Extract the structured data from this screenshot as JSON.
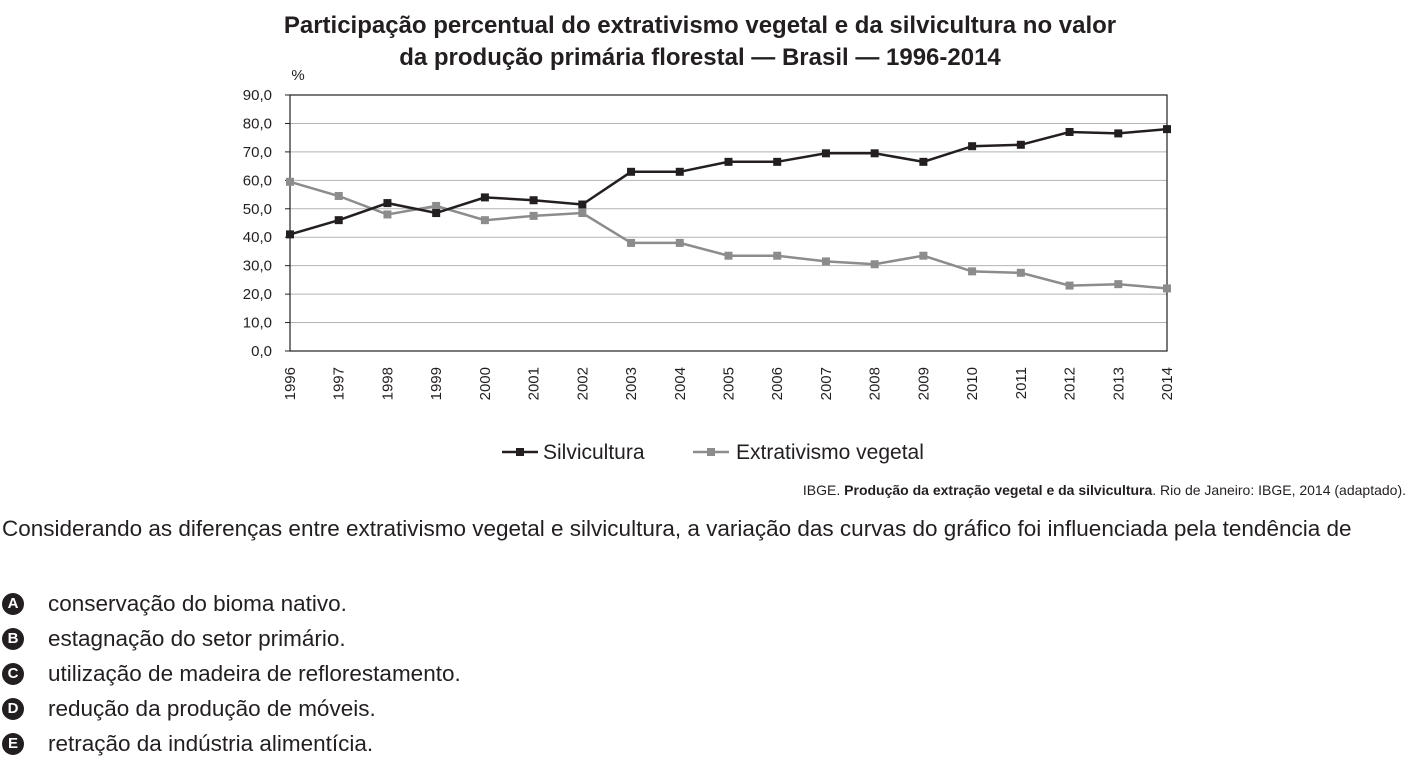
{
  "chart_data": {
    "type": "line",
    "title_line1": "Participação percentual do extrativismo vegetal e da silvicultura no valor",
    "title_line2": "da produção primária florestal — Brasil — 1996-2014",
    "ylabel": "%",
    "ylim": [
      0,
      90
    ],
    "yticks": [
      "0,0",
      "10,0",
      "20,0",
      "30,0",
      "40,0",
      "50,0",
      "60,0",
      "70,0",
      "80,0",
      "90,0"
    ],
    "x": [
      "1996",
      "1997",
      "1998",
      "1999",
      "2000",
      "2001",
      "2002",
      "2003",
      "2004",
      "2005",
      "2006",
      "2007",
      "2008",
      "2009",
      "2010",
      "2011",
      "2012",
      "2013",
      "2014"
    ],
    "grid": true,
    "legend_position": "bottom",
    "series": [
      {
        "name": "Silvicultura",
        "color": "#231f20",
        "values": [
          41.0,
          46.0,
          52.0,
          48.5,
          54.0,
          53.0,
          51.5,
          63.0,
          63.0,
          66.5,
          66.5,
          69.5,
          69.5,
          66.5,
          72.0,
          72.5,
          77.0,
          76.5,
          78.0
        ]
      },
      {
        "name": "Extrativismo vegetal",
        "color": "#8c8c8c",
        "values": [
          59.5,
          54.5,
          48.0,
          51.0,
          46.0,
          47.5,
          48.5,
          38.0,
          38.0,
          33.5,
          33.5,
          31.5,
          30.5,
          33.5,
          28.0,
          27.5,
          23.0,
          23.5,
          22.0
        ]
      }
    ]
  },
  "source": {
    "prefix": "IBGE. ",
    "bold": "Produção da extração vegetal e da silvicultura",
    "suffix": ". Rio de Janeiro: IBGE, 2014 (adaptado)."
  },
  "question": "Considerando as diferenças entre extrativismo vegetal e silvicultura, a variação das curvas do gráfico foi influenciada pela tendência de",
  "options": [
    {
      "letter": "A",
      "text": "conservação do bioma nativo."
    },
    {
      "letter": "B",
      "text": "estagnação do setor primário."
    },
    {
      "letter": "C",
      "text": "utilização de madeira de reflorestamento."
    },
    {
      "letter": "D",
      "text": "redução da produção de móveis."
    },
    {
      "letter": "E",
      "text": "retração da indústria alimentícia."
    }
  ]
}
